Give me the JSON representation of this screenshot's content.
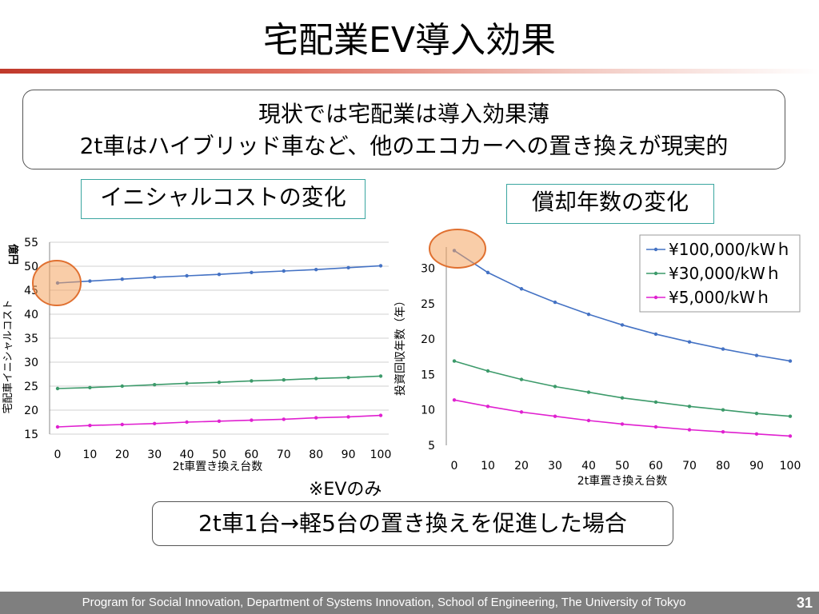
{
  "title": "宅配業EV導入効果",
  "summary": {
    "line1": "現状では宅配業は導入効果薄",
    "line2": "2t車はハイブリッド車など、他のエコカーへの置き換えが現実的"
  },
  "left_label": "イニシャルコストの変化",
  "right_label": "償却年数の変化",
  "note": "※EVのみ",
  "bottom_text": "2t車1台→軽5台の置き換えを促進した場合",
  "footer": {
    "text": "Program for Social Innovation, Department of Systems Innovation, School of Engineering, The University of Tokyo",
    "page": "31"
  },
  "chart_data": [
    {
      "type": "line",
      "xlabel": "2t車置き換え台数",
      "ylabel_unit": "億円",
      "ylabel": "宅配車イニシャルコスト",
      "x": [
        0,
        10,
        20,
        30,
        40,
        50,
        60,
        70,
        80,
        90,
        100
      ],
      "ylim": [
        15,
        55
      ],
      "yticks": [
        15,
        20,
        25,
        30,
        35,
        40,
        45,
        50,
        55
      ],
      "grid": true,
      "series": [
        {
          "color": "#4472c4",
          "values": [
            46.5,
            46.9,
            47.3,
            47.7,
            48.0,
            48.3,
            48.7,
            49.0,
            49.3,
            49.7,
            50.1
          ]
        },
        {
          "color": "#3c9a6a",
          "values": [
            24.5,
            24.7,
            25.0,
            25.3,
            25.6,
            25.8,
            26.1,
            26.3,
            26.6,
            26.8,
            27.1
          ]
        },
        {
          "color": "#e020d0",
          "values": [
            16.5,
            16.8,
            17.0,
            17.2,
            17.5,
            17.7,
            17.9,
            18.1,
            18.4,
            18.6,
            18.9
          ]
        }
      ]
    },
    {
      "type": "line",
      "xlabel": "2t車置き換え台数",
      "ylabel": "投資回収年数（年）",
      "x": [
        0,
        10,
        20,
        30,
        40,
        50,
        60,
        70,
        80,
        90,
        100
      ],
      "ylim": [
        5,
        33
      ],
      "yticks": [
        5,
        10,
        15,
        20,
        25,
        30
      ],
      "grid": false,
      "legend_position": "top-right",
      "series": [
        {
          "name": "¥100,000/kWｈ",
          "color": "#4472c4",
          "values": [
            32.5,
            29.4,
            27.1,
            25.2,
            23.5,
            22.0,
            20.7,
            19.6,
            18.6,
            17.7,
            16.9
          ]
        },
        {
          "name": "¥30,000/kWｈ",
          "color": "#3c9a6a",
          "values": [
            16.9,
            15.5,
            14.3,
            13.3,
            12.5,
            11.7,
            11.1,
            10.5,
            10.0,
            9.5,
            9.1
          ]
        },
        {
          "name": "¥5,000/kWｈ",
          "color": "#e020d0",
          "values": [
            11.4,
            10.5,
            9.7,
            9.1,
            8.5,
            8.0,
            7.6,
            7.2,
            6.9,
            6.6,
            6.3
          ]
        }
      ]
    }
  ]
}
